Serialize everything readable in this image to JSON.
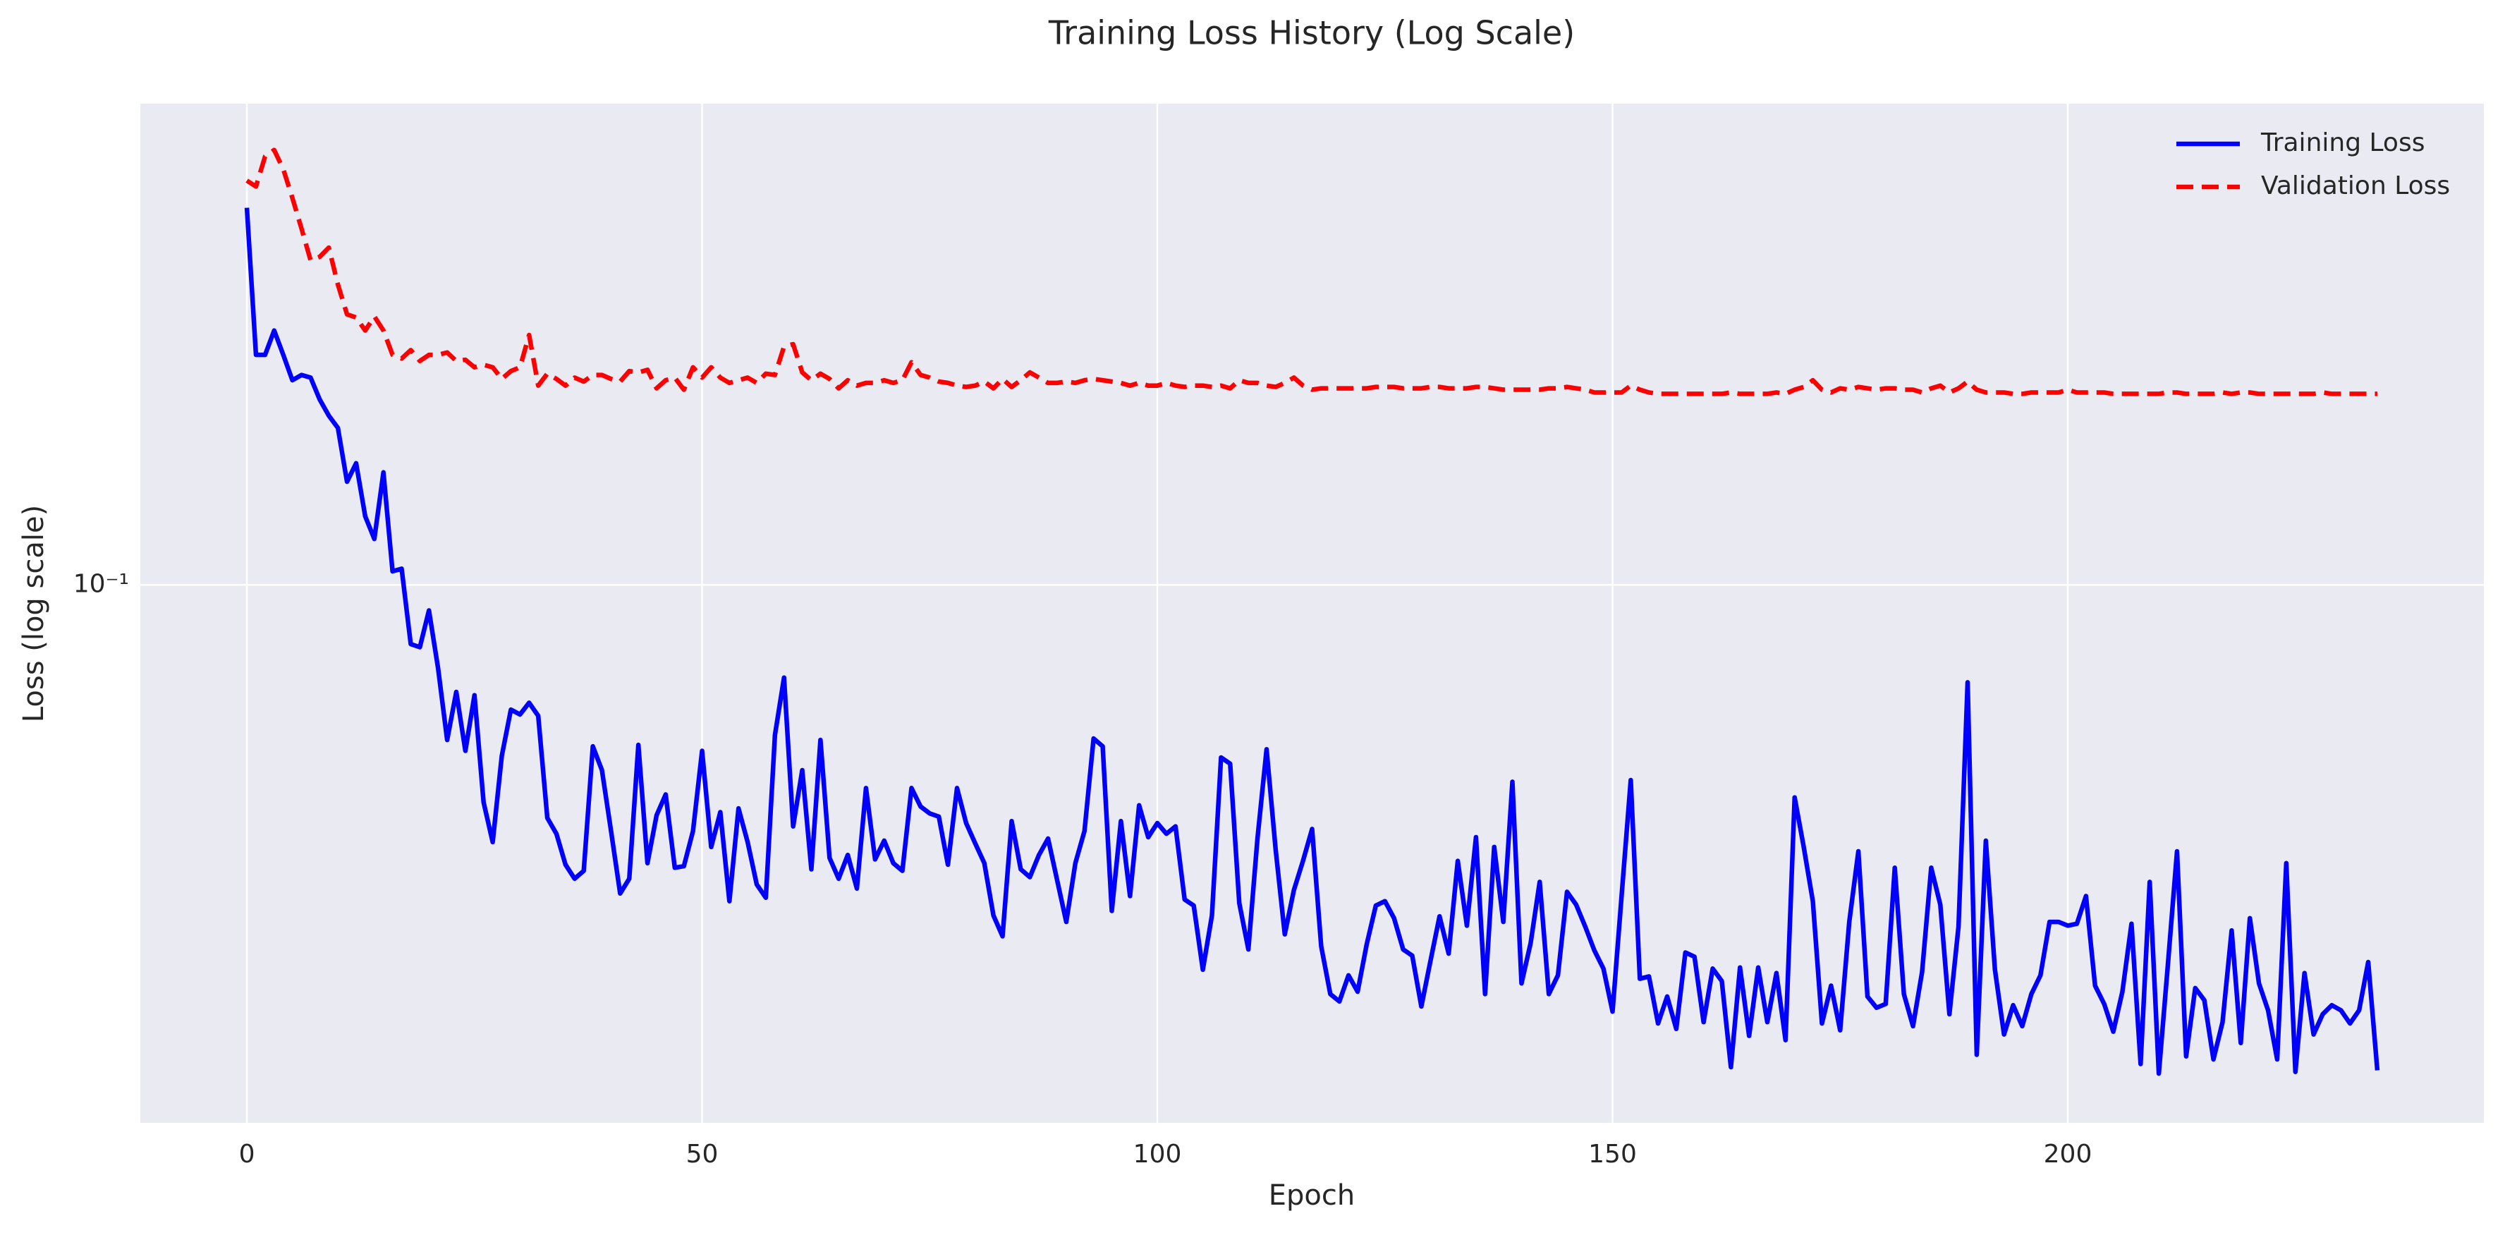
{
  "chart_data": {
    "type": "line",
    "title": "Training Loss History (Log Scale)",
    "xlabel": "Epoch",
    "ylabel": "Loss (log scale)",
    "yscale": "log",
    "grid": true,
    "legend": "upper right",
    "xlim": [
      -11.7,
      245.7
    ],
    "xticks": [
      0,
      50,
      100,
      150,
      200
    ],
    "ylim": [
      0.0144,
      0.566
    ],
    "yticks": [
      {
        "value": 0.1,
        "label": "10⁻¹"
      }
    ],
    "x": [
      0,
      1,
      2,
      3,
      4,
      5,
      6,
      7,
      8,
      9,
      10,
      11,
      12,
      13,
      14,
      15,
      16,
      17,
      18,
      19,
      20,
      21,
      22,
      23,
      24,
      25,
      26,
      27,
      28,
      29,
      30,
      31,
      32,
      33,
      34,
      35,
      36,
      37,
      38,
      39,
      40,
      41,
      42,
      43,
      44,
      45,
      46,
      47,
      48,
      49,
      50,
      51,
      52,
      53,
      54,
      55,
      56,
      57,
      58,
      59,
      60,
      61,
      62,
      63,
      64,
      65,
      66,
      67,
      68,
      69,
      70,
      71,
      72,
      73,
      74,
      75,
      76,
      77,
      78,
      79,
      80,
      81,
      82,
      83,
      84,
      85,
      86,
      87,
      88,
      89,
      90,
      91,
      92,
      93,
      94,
      95,
      96,
      97,
      98,
      99,
      100,
      101,
      102,
      103,
      104,
      105,
      106,
      107,
      108,
      109,
      110,
      111,
      112,
      113,
      114,
      115,
      116,
      117,
      118,
      119,
      120,
      121,
      122,
      123,
      124,
      125,
      126,
      127,
      128,
      129,
      130,
      131,
      132,
      133,
      134,
      135,
      136,
      137,
      138,
      139,
      140,
      141,
      142,
      143,
      144,
      145,
      146,
      147,
      148,
      149,
      150,
      151,
      152,
      153,
      154,
      155,
      156,
      157,
      158,
      159,
      160,
      161,
      162,
      163,
      164,
      165,
      166,
      167,
      168,
      169,
      170,
      171,
      172,
      173,
      174,
      175,
      176,
      177,
      178,
      179,
      180,
      181,
      182,
      183,
      184,
      185,
      186,
      187,
      188,
      189,
      190,
      191,
      192,
      193,
      194,
      195,
      196,
      197,
      198,
      199,
      200,
      201,
      202,
      203,
      204,
      205,
      206,
      207,
      208,
      209,
      210,
      211,
      212,
      213,
      214,
      215,
      216,
      217,
      218,
      219,
      220,
      221,
      222,
      223,
      224,
      225,
      226,
      227,
      228,
      229,
      230,
      231,
      232,
      233,
      234
    ],
    "series": [
      {
        "name": "Training Loss",
        "color": "#0000ff",
        "dash": "solid",
        "values": [
          0.389,
          0.229,
          0.229,
          0.25,
          0.229,
          0.209,
          0.213,
          0.211,
          0.195,
          0.184,
          0.176,
          0.145,
          0.155,
          0.128,
          0.118,
          0.15,
          0.105,
          0.106,
          0.0808,
          0.0799,
          0.0912,
          0.0741,
          0.0572,
          0.068,
          0.055,
          0.0672,
          0.0457,
          0.0396,
          0.054,
          0.0638,
          0.0627,
          0.0654,
          0.0624,
          0.0432,
          0.0408,
          0.0365,
          0.0347,
          0.0357,
          0.0559,
          0.0513,
          0.0412,
          0.0329,
          0.0347,
          0.0562,
          0.0367,
          0.0436,
          0.047,
          0.0361,
          0.0363,
          0.0412,
          0.055,
          0.0389,
          0.0441,
          0.032,
          0.0447,
          0.0396,
          0.034,
          0.0324,
          0.0582,
          0.0716,
          0.0419,
          0.0513,
          0.0359,
          0.0572,
          0.0374,
          0.0347,
          0.0378,
          0.0335,
          0.0481,
          0.0372,
          0.0398,
          0.0367,
          0.0357,
          0.0481,
          0.045,
          0.0439,
          0.0434,
          0.0365,
          0.0481,
          0.0424,
          0.0394,
          0.0367,
          0.0304,
          0.0282,
          0.0427,
          0.0359,
          0.0349,
          0.0378,
          0.0401,
          0.0345,
          0.0297,
          0.0367,
          0.0412,
          0.0575,
          0.0559,
          0.0309,
          0.0427,
          0.0326,
          0.0452,
          0.0403,
          0.0424,
          0.0408,
          0.0419,
          0.0322,
          0.0315,
          0.025,
          0.0304,
          0.0537,
          0.0525,
          0.0318,
          0.0269,
          0.0401,
          0.0553,
          0.0385,
          0.0284,
          0.0333,
          0.037,
          0.0415,
          0.0272,
          0.0229,
          0.0223,
          0.0245,
          0.0231,
          0.0274,
          0.0315,
          0.032,
          0.0301,
          0.0269,
          0.0263,
          0.0219,
          0.0258,
          0.0303,
          0.0265,
          0.037,
          0.0293,
          0.0403,
          0.0229,
          0.0389,
          0.0297,
          0.0492,
          0.0238,
          0.0275,
          0.0343,
          0.0229,
          0.0245,
          0.0331,
          0.0316,
          0.0292,
          0.0268,
          0.0251,
          0.0215,
          0.0327,
          0.0495,
          0.0242,
          0.0244,
          0.0206,
          0.0227,
          0.0202,
          0.0266,
          0.0262,
          0.0207,
          0.0251,
          0.024,
          0.0176,
          0.0252,
          0.0197,
          0.0252,
          0.0207,
          0.0247,
          0.0194,
          0.0465,
          0.0389,
          0.032,
          0.0206,
          0.0236,
          0.0201,
          0.0297,
          0.0383,
          0.0227,
          0.0218,
          0.0221,
          0.0361,
          0.0229,
          0.0204,
          0.0248,
          0.0361,
          0.0316,
          0.0213,
          0.0292,
          0.0704,
          0.0184,
          0.0398,
          0.025,
          0.0198,
          0.022,
          0.0204,
          0.0229,
          0.0245,
          0.0297,
          0.0297,
          0.0293,
          0.0295,
          0.0326,
          0.0236,
          0.0221,
          0.02,
          0.0231,
          0.0295,
          0.0178,
          0.0343,
          0.0172,
          0.0255,
          0.0383,
          0.0183,
          0.0234,
          0.0224,
          0.0181,
          0.0207,
          0.0288,
          0.0192,
          0.0301,
          0.0238,
          0.0216,
          0.0181,
          0.0367,
          0.0173,
          0.0247,
          0.0198,
          0.0213,
          0.022,
          0.0216,
          0.0206,
          0.0216,
          0.0257,
          0.0174
        ]
      },
      {
        "name": "Validation Loss",
        "color": "#ff0000",
        "dash": "dashed",
        "values": [
          0.429,
          0.42,
          0.468,
          0.479,
          0.447,
          0.403,
          0.361,
          0.322,
          0.326,
          0.337,
          0.295,
          0.265,
          0.262,
          0.25,
          0.263,
          0.25,
          0.229,
          0.226,
          0.233,
          0.224,
          0.229,
          0.229,
          0.231,
          0.224,
          0.225,
          0.219,
          0.221,
          0.219,
          0.21,
          0.216,
          0.219,
          0.246,
          0.205,
          0.214,
          0.21,
          0.205,
          0.211,
          0.208,
          0.213,
          0.213,
          0.21,
          0.208,
          0.216,
          0.215,
          0.217,
          0.203,
          0.209,
          0.211,
          0.202,
          0.219,
          0.211,
          0.219,
          0.211,
          0.207,
          0.209,
          0.211,
          0.207,
          0.214,
          0.213,
          0.236,
          0.238,
          0.215,
          0.209,
          0.214,
          0.21,
          0.203,
          0.209,
          0.205,
          0.207,
          0.207,
          0.209,
          0.207,
          0.209,
          0.223,
          0.213,
          0.211,
          0.208,
          0.207,
          0.205,
          0.204,
          0.205,
          0.208,
          0.203,
          0.21,
          0.204,
          0.209,
          0.215,
          0.211,
          0.207,
          0.207,
          0.208,
          0.207,
          0.209,
          0.21,
          0.209,
          0.208,
          0.207,
          0.205,
          0.207,
          0.205,
          0.205,
          0.207,
          0.205,
          0.204,
          0.205,
          0.205,
          0.204,
          0.205,
          0.203,
          0.209,
          0.207,
          0.207,
          0.205,
          0.204,
          0.207,
          0.211,
          0.205,
          0.202,
          0.203,
          0.203,
          0.203,
          0.203,
          0.203,
          0.203,
          0.204,
          0.204,
          0.204,
          0.203,
          0.203,
          0.203,
          0.204,
          0.204,
          0.203,
          0.203,
          0.203,
          0.204,
          0.204,
          0.203,
          0.202,
          0.202,
          0.202,
          0.202,
          0.202,
          0.203,
          0.203,
          0.204,
          0.203,
          0.202,
          0.2,
          0.2,
          0.2,
          0.2,
          0.205,
          0.202,
          0.2,
          0.199,
          0.199,
          0.199,
          0.199,
          0.199,
          0.199,
          0.199,
          0.199,
          0.2,
          0.199,
          0.199,
          0.199,
          0.199,
          0.2,
          0.199,
          0.202,
          0.204,
          0.209,
          0.202,
          0.2,
          0.203,
          0.202,
          0.204,
          0.203,
          0.202,
          0.203,
          0.203,
          0.202,
          0.202,
          0.2,
          0.203,
          0.205,
          0.2,
          0.203,
          0.208,
          0.202,
          0.2,
          0.2,
          0.2,
          0.199,
          0.199,
          0.2,
          0.2,
          0.2,
          0.2,
          0.202,
          0.2,
          0.2,
          0.2,
          0.2,
          0.199,
          0.199,
          0.199,
          0.199,
          0.199,
          0.199,
          0.2,
          0.2,
          0.199,
          0.199,
          0.199,
          0.199,
          0.2,
          0.199,
          0.2,
          0.2,
          0.199,
          0.199,
          0.199,
          0.199,
          0.199,
          0.199,
          0.199,
          0.2,
          0.199,
          0.199,
          0.199,
          0.199,
          0.199,
          0.199
        ]
      }
    ]
  }
}
